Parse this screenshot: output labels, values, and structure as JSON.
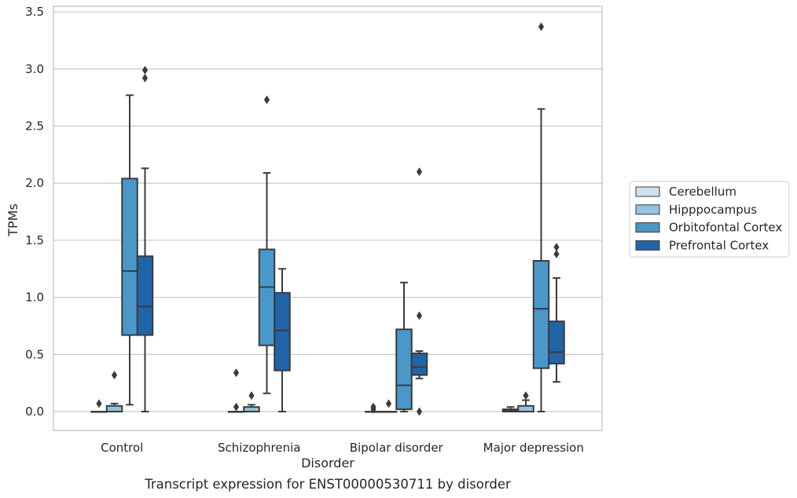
{
  "chart_data": {
    "type": "box",
    "title": "",
    "caption": "Transcript expression for ENST00000530711 by disorder",
    "xlabel": "Disorder",
    "ylabel": "TPMs",
    "ylim": [
      -0.16,
      3.56
    ],
    "yticks": [
      "0.0",
      "0.5",
      "1.0",
      "1.5",
      "2.0",
      "2.5",
      "3.0",
      "3.5"
    ],
    "grid": "horizontal",
    "legend_position": "right",
    "categories": [
      "Control",
      "Schizophrenia",
      "Bipolar disorder",
      "Major depression"
    ],
    "series": [
      {
        "name": "Cerebellum",
        "color": "#d0e1f2",
        "boxes": [
          {
            "whislo": 0.0,
            "q1": 0.0,
            "med": 0.0,
            "q3": 0.0,
            "whishi": 0.0,
            "fliers": [
              0.07
            ]
          },
          {
            "whislo": 0.0,
            "q1": 0.0,
            "med": 0.0,
            "q3": 0.0,
            "whishi": 0.0,
            "fliers": [
              0.34,
              0.04
            ]
          },
          {
            "whislo": 0.0,
            "q1": 0.0,
            "med": 0.0,
            "q3": 0.0,
            "whishi": 0.0,
            "fliers": [
              0.04,
              0.02
            ]
          },
          {
            "whislo": 0.0,
            "q1": 0.0,
            "med": 0.01,
            "q3": 0.02,
            "whishi": 0.04,
            "fliers": []
          }
        ]
      },
      {
        "name": "Hipppocampus",
        "color": "#94c4df",
        "boxes": [
          {
            "whislo": 0.0,
            "q1": 0.0,
            "med": 0.0,
            "q3": 0.05,
            "whishi": 0.07,
            "fliers": [
              0.32
            ]
          },
          {
            "whislo": 0.0,
            "q1": 0.0,
            "med": 0.0,
            "q3": 0.04,
            "whishi": 0.06,
            "fliers": [
              0.14
            ]
          },
          {
            "whislo": 0.0,
            "q1": 0.0,
            "med": 0.0,
            "q3": 0.0,
            "whishi": 0.0,
            "fliers": [
              0.07
            ]
          },
          {
            "whislo": 0.0,
            "q1": 0.0,
            "med": 0.0,
            "q3": 0.05,
            "whishi": 0.1,
            "fliers": [
              0.14
            ]
          }
        ]
      },
      {
        "name": "Orbitofontal Cortex",
        "color": "#4a98c9",
        "boxes": [
          {
            "whislo": 0.06,
            "q1": 0.67,
            "med": 1.23,
            "q3": 2.04,
            "whishi": 2.77,
            "fliers": []
          },
          {
            "whislo": 0.16,
            "q1": 0.58,
            "med": 1.09,
            "q3": 1.42,
            "whishi": 2.09,
            "fliers": [
              2.73
            ]
          },
          {
            "whislo": 0.0,
            "q1": 0.02,
            "med": 0.23,
            "q3": 0.72,
            "whishi": 1.13,
            "fliers": []
          },
          {
            "whislo": 0.0,
            "q1": 0.38,
            "med": 0.9,
            "q3": 1.32,
            "whishi": 2.65,
            "fliers": [
              3.37
            ]
          }
        ]
      },
      {
        "name": "Prefrontal Cortex",
        "color": "#2165a9",
        "boxes": [
          {
            "whislo": 0.0,
            "q1": 0.67,
            "med": 0.92,
            "q3": 1.36,
            "whishi": 2.13,
            "fliers": [
              2.92,
              2.99
            ]
          },
          {
            "whislo": 0.0,
            "q1": 0.36,
            "med": 0.71,
            "q3": 1.04,
            "whishi": 1.25,
            "fliers": []
          },
          {
            "whislo": 0.29,
            "q1": 0.32,
            "med": 0.39,
            "q3": 0.51,
            "whishi": 0.53,
            "fliers": [
              0.84,
              2.1,
              0.0
            ]
          },
          {
            "whislo": 0.26,
            "q1": 0.42,
            "med": 0.52,
            "q3": 0.79,
            "whishi": 1.17,
            "fliers": [
              1.38,
              1.44
            ]
          }
        ]
      }
    ]
  }
}
